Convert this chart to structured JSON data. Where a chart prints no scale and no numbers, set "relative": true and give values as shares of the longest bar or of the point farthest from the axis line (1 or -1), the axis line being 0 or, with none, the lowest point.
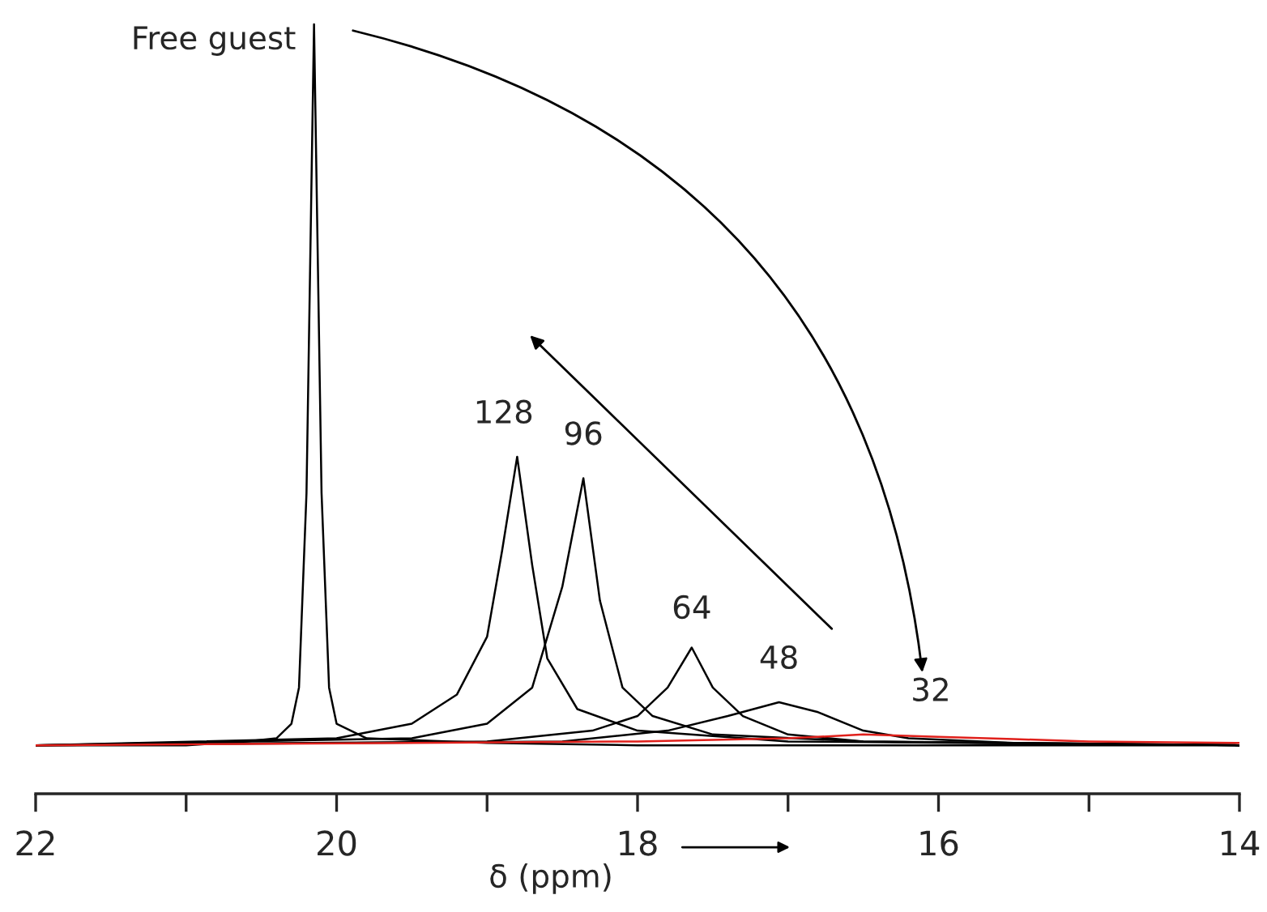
{
  "chart_data": {
    "type": "line",
    "relative": true,
    "xlabel": "δ (ppm)",
    "xlim": [
      22,
      14
    ],
    "xticks": [
      22,
      {
        "value": 21,
        "label": null
      },
      20,
      {
        "value": 19,
        "label": null
      },
      18,
      {
        "value": 17,
        "label": null
      },
      16,
      {
        "value": 15,
        "label": null
      },
      14
    ],
    "tick_labels": "x",
    "grid": false,
    "series": [
      {
        "color": "#000000",
        "x": [
          22,
          21,
          20.6,
          20.4,
          20.3,
          20.25,
          20.2,
          20.15,
          20.1,
          20.05,
          20.0,
          19.8,
          19,
          18,
          14
        ],
        "values": [
          0.063,
          0.063,
          0.068,
          0.072,
          0.091,
          0.138,
          0.391,
          1.0,
          0.391,
          0.138,
          0.091,
          0.072,
          0.066,
          0.063,
          0.063
        ]
      },
      {
        "color": "#000000",
        "x": [
          22,
          20,
          19.5,
          19.2,
          19.0,
          18.9,
          18.8,
          18.7,
          18.6,
          18.4,
          18.0,
          17,
          14
        ],
        "values": [
          0.063,
          0.072,
          0.091,
          0.129,
          0.204,
          0.316,
          0.438,
          0.297,
          0.176,
          0.11,
          0.082,
          0.068,
          0.063
        ]
      },
      {
        "color": "#000000",
        "x": [
          22,
          19.5,
          19,
          18.7,
          18.5,
          18.36,
          18.25,
          18.1,
          17.9,
          17.5,
          16.5,
          14
        ],
        "values": [
          0.063,
          0.072,
          0.091,
          0.138,
          0.269,
          0.41,
          0.251,
          0.138,
          0.101,
          0.077,
          0.068,
          0.063
        ]
      },
      {
        "color": "#000000",
        "x": [
          22,
          19,
          18.3,
          18.0,
          17.8,
          17.64,
          17.5,
          17.3,
          17.0,
          16.5,
          14
        ],
        "values": [
          0.063,
          0.068,
          0.082,
          0.101,
          0.138,
          0.19,
          0.138,
          0.101,
          0.077,
          0.068,
          0.063
        ]
      },
      {
        "color": "#000000",
        "x": [
          22,
          18.5,
          17.8,
          17.4,
          17.06,
          16.8,
          16.5,
          16.2,
          15.5,
          14
        ],
        "values": [
          0.063,
          0.068,
          0.082,
          0.101,
          0.119,
          0.106,
          0.082,
          0.072,
          0.066,
          0.063
        ]
      },
      {
        "color": "#e0201b",
        "x": [
          22,
          18,
          17,
          16.5,
          16,
          15.5,
          15,
          14
        ],
        "values": [
          0.063,
          0.068,
          0.072,
          0.077,
          0.074,
          0.071,
          0.068,
          0.066
        ]
      }
    ],
    "annotations": [
      "Free guest",
      "128",
      "96",
      "64",
      "48",
      "32"
    ]
  }
}
